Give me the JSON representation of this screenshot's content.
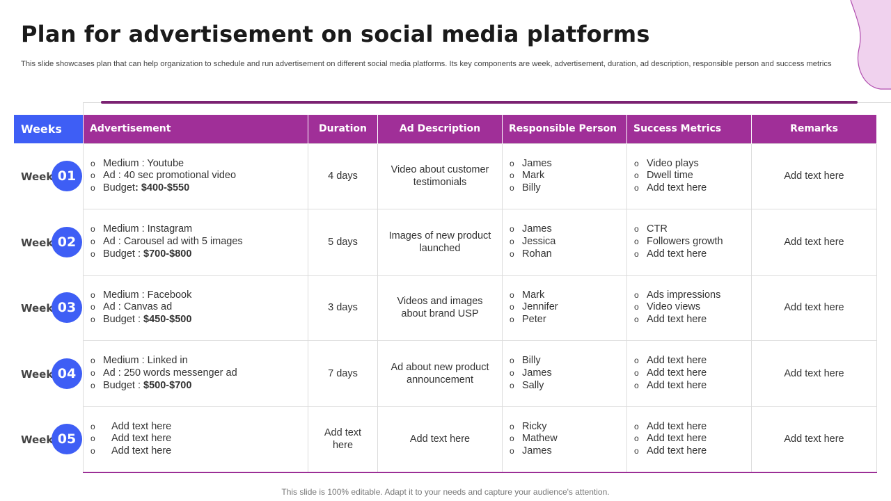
{
  "title": "Plan for advertisement on social media platforms",
  "subtitle": "This slide showcases plan that can help organization to schedule and run advertisement on different social media platforms. Its key components are week, advertisement, duration, ad description, responsible person and success metrics",
  "weeks_header": "Weeks",
  "headers": [
    "Advertisement",
    "Duration",
    "Ad Description",
    "Responsible Person",
    "Success Metrics",
    "Remarks"
  ],
  "colors": {
    "header_purple": "#a02f98",
    "accent_blue": "#3e5ef5",
    "line_purple": "#7b2272"
  },
  "rows": [
    {
      "week_label": "Week",
      "week_num": "01",
      "ad": [
        {
          "text": "Medium : Youtube"
        },
        {
          "text": "Ad : 40 sec promotional video"
        },
        {
          "text": "Budget",
          "value": ": $400-$550"
        }
      ],
      "duration": "4 days",
      "description": "Video about customer testimonials",
      "persons": [
        "James",
        "Mark",
        "Billy"
      ],
      "metrics": [
        "Video plays",
        "Dwell time",
        "Add text here"
      ],
      "remarks": "Add text here"
    },
    {
      "week_label": "Week",
      "week_num": "02",
      "ad": [
        {
          "text": "Medium : Instagram"
        },
        {
          "text": "Ad : Carousel ad with 5 images"
        },
        {
          "text": "Budget : ",
          "value": "$700-$800"
        }
      ],
      "duration": "5 days",
      "description": "Images of new product launched",
      "persons": [
        "James",
        "Jessica",
        "Rohan"
      ],
      "metrics": [
        "CTR",
        "Followers growth",
        "Add text here"
      ],
      "remarks": "Add text here"
    },
    {
      "week_label": "Week",
      "week_num": "03",
      "ad": [
        {
          "text": "Medium : Facebook"
        },
        {
          "text": "Ad : Canvas ad"
        },
        {
          "text": "Budget : ",
          "value": "$450-$500"
        }
      ],
      "duration": "3 days",
      "description": "Videos and images about brand USP",
      "persons": [
        "Mark",
        "Jennifer",
        "Peter"
      ],
      "metrics": [
        "Ads impressions",
        "Video views",
        "Add text here"
      ],
      "remarks": "Add text here"
    },
    {
      "week_label": "Week",
      "week_num": "04",
      "ad": [
        {
          "text": "Medium : Linked in"
        },
        {
          "text": "Ad : 250 words messenger ad"
        },
        {
          "text": "Budget : ",
          "value": "$500-$700"
        }
      ],
      "duration": "7 days",
      "description": "Ad about new product announcement",
      "persons": [
        "Billy",
        "James",
        "Sally"
      ],
      "metrics": [
        "Add text here",
        "Add text here",
        "Add text here"
      ],
      "remarks": "Add text here"
    },
    {
      "week_label": "Week",
      "week_num": "05",
      "ad": [
        {
          "text": "Add text here"
        },
        {
          "text": "Add text here"
        },
        {
          "text": "Add text here"
        }
      ],
      "duration": "Add text here",
      "description": "Add text here",
      "persons": [
        "Ricky",
        "Mathew",
        "James"
      ],
      "metrics": [
        "Add text here",
        "Add text here",
        "Add text here"
      ],
      "remarks": "Add text here"
    }
  ],
  "footer": "This slide is 100% editable. Adapt it to your needs and capture your audience's attention."
}
